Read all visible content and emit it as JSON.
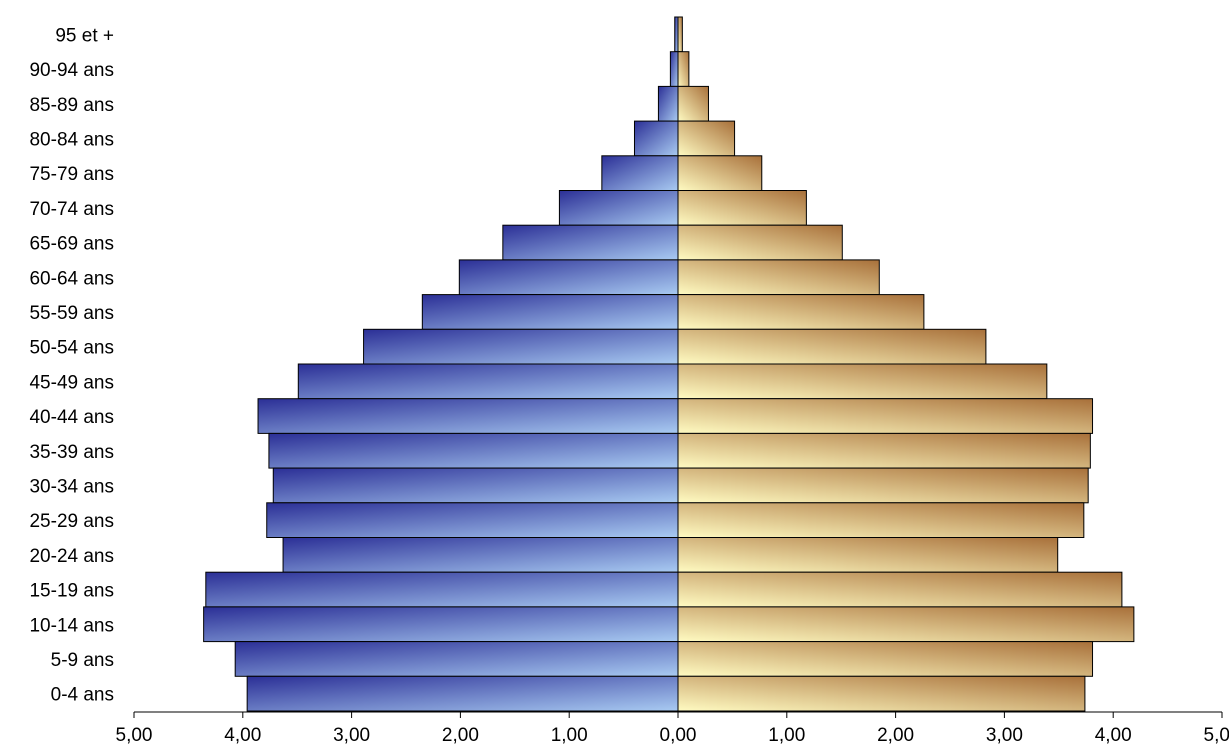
{
  "chart_data": {
    "type": "bar",
    "orientation": "horizontal",
    "categories": [
      "95 et +",
      "90-94 ans",
      "85-89 ans",
      "80-84 ans",
      "75-79 ans",
      "70-74 ans",
      "65-69 ans",
      "60-64 ans",
      "55-59 ans",
      "50-54 ans",
      "45-49 ans",
      "40-44 ans",
      "35-39 ans",
      "30-34 ans",
      "25-29 ans",
      "20-24 ans",
      "15-19 ans",
      "10-14 ans",
      "5-9 ans",
      "0-4 ans"
    ],
    "series": [
      {
        "side": "left",
        "values": [
          0.03,
          0.07,
          0.18,
          0.4,
          0.7,
          1.09,
          1.61,
          2.01,
          2.35,
          2.89,
          3.49,
          3.86,
          3.76,
          3.72,
          3.78,
          3.63,
          4.34,
          4.36,
          4.07,
          3.96
        ]
      },
      {
        "side": "right",
        "values": [
          0.04,
          0.1,
          0.28,
          0.52,
          0.77,
          1.18,
          1.51,
          1.85,
          2.26,
          2.83,
          3.39,
          3.81,
          3.79,
          3.77,
          3.73,
          3.49,
          4.08,
          4.19,
          3.81,
          3.74
        ]
      }
    ],
    "xlim": [
      -5,
      5
    ],
    "ticks": [
      "5,00",
      "4,00",
      "3,00",
      "2,00",
      "1,00",
      "0,00",
      "1,00",
      "2,00",
      "3,00",
      "4,00",
      "5,00"
    ],
    "title": "",
    "xlabel": "",
    "ylabel": "",
    "grid": false,
    "colors": {
      "left_dark": "#2b2f96",
      "left_light": "#a9cbf2",
      "right_light": "#fffbc2",
      "right_dark": "#a8703a"
    }
  }
}
